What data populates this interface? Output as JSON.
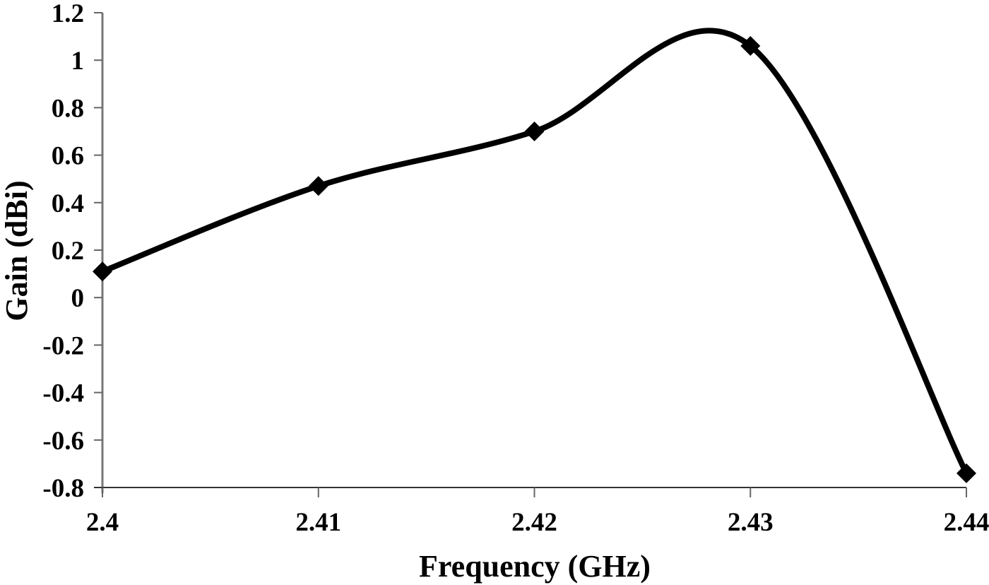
{
  "chart_data": {
    "type": "line",
    "title": "",
    "xlabel": "Frequency (GHz)",
    "ylabel": "Gain (dBi)",
    "x": [
      2.4,
      2.41,
      2.42,
      2.43,
      2.44
    ],
    "series": [
      {
        "name": "Gain",
        "values": [
          0.11,
          0.47,
          0.7,
          1.06,
          -0.74
        ],
        "color": "#000000",
        "marker": "diamond",
        "smoothed": true
      }
    ],
    "xlim": [
      2.4,
      2.44
    ],
    "ylim": [
      -0.8,
      1.2
    ],
    "x_ticks": [
      "2.4",
      "2.41",
      "2.42",
      "2.43",
      "2.44"
    ],
    "y_ticks": [
      "1.2",
      "1",
      "0.8",
      "0.6",
      "0.4",
      "0.2",
      "0",
      "-0.2",
      "-0.4",
      "-0.6",
      "-0.8"
    ],
    "grid": false,
    "legend": null
  }
}
